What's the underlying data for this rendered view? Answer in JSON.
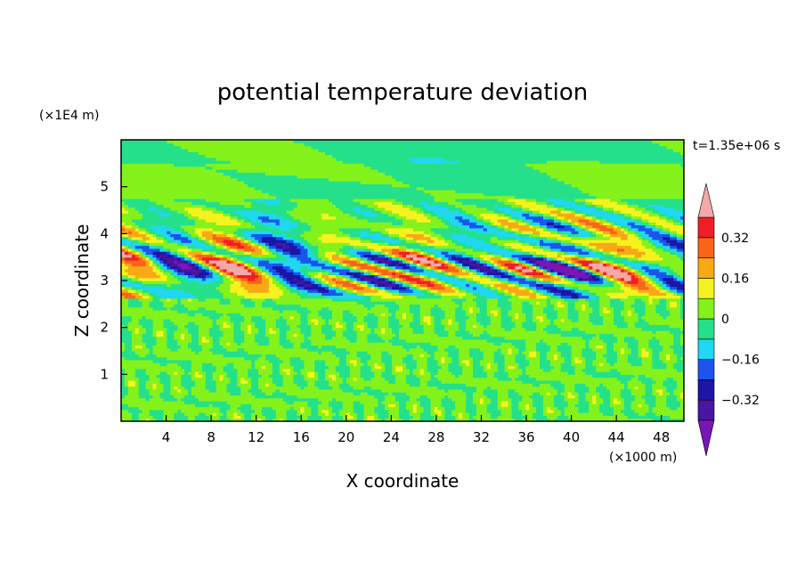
{
  "chart_data": {
    "type": "heatmap",
    "title": "potential temperature deviation",
    "time_label": "t=1.35e+06 s",
    "xlabel": "X coordinate",
    "ylabel": "Z coordinate",
    "x_unit": "(×1000 m)",
    "y_unit": "(×1E4 m)",
    "xlim": [
      0,
      50
    ],
    "ylim": [
      0,
      6
    ],
    "x_ticks": [
      4,
      8,
      12,
      16,
      20,
      24,
      28,
      32,
      36,
      40,
      44,
      48
    ],
    "y_ticks": [
      1,
      2,
      3,
      4,
      5
    ],
    "colorbar": {
      "levels": [
        -0.4,
        -0.32,
        -0.24,
        -0.16,
        -0.08,
        0,
        0.08,
        0.16,
        0.24,
        0.32,
        0.4
      ],
      "labeled": [
        0.32,
        0.16,
        0,
        -0.16,
        -0.32
      ],
      "colors": {
        "below": "#7a16b4",
        "bins": [
          "#4a15a0",
          "#1c16a6",
          "#1b55ee",
          "#20d7f4",
          "#25e08a",
          "#84f21b",
          "#f6f21f",
          "#f8a916",
          "#f8641a",
          "#ef1f25"
        ],
        "above": "#f4a8a8"
      }
    }
  }
}
